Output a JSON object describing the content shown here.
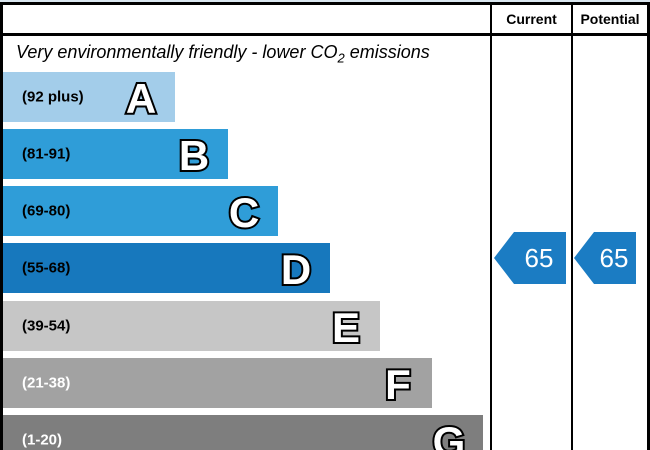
{
  "header": {
    "current": "Current",
    "potential": "Potential"
  },
  "title": {
    "prefix": "Very environmentally friendly - lower CO",
    "subscript": "2",
    "suffix": " emissions"
  },
  "bands": [
    {
      "letter": "A",
      "range": "(92 plus)",
      "color": "#a3cdea",
      "text_color": "#000000"
    },
    {
      "letter": "B",
      "range": "(81-91)",
      "color": "#2f9dd8",
      "text_color": "#000000"
    },
    {
      "letter": "C",
      "range": "(69-80)",
      "color": "#2f9dd8",
      "text_color": "#000000"
    },
    {
      "letter": "D",
      "range": "(55-68)",
      "color": "#1778bd",
      "text_color": "#000000"
    },
    {
      "letter": "E",
      "range": "(39-54)",
      "color": "#c6c6c6",
      "text_color": "#000000"
    },
    {
      "letter": "F",
      "range": "(21-38)",
      "color": "#a2a2a2",
      "text_color": "#ffffff"
    },
    {
      "letter": "G",
      "range": "(1-20)",
      "color": "#7e7e7e",
      "text_color": "#ffffff"
    }
  ],
  "ratings": {
    "current_value": "65",
    "potential_value": "65",
    "arrow_color": "#1b7cc3"
  },
  "chart_data": {
    "type": "bar",
    "title": "Very environmentally friendly - lower CO2 emissions",
    "categories": [
      "A",
      "B",
      "C",
      "D",
      "E",
      "F",
      "G"
    ],
    "band_ranges": [
      "92 plus",
      "81-91",
      "69-80",
      "55-68",
      "39-54",
      "21-38",
      "1-20"
    ],
    "band_colors": [
      "#a3cdea",
      "#2f9dd8",
      "#2f9dd8",
      "#1778bd",
      "#c6c6c6",
      "#a2a2a2",
      "#7e7e7e"
    ],
    "columns": [
      "Current",
      "Potential"
    ],
    "series": [
      {
        "name": "Current",
        "values": [
          65
        ]
      },
      {
        "name": "Potential",
        "values": [
          65
        ]
      }
    ],
    "current_rating_band": "D",
    "potential_rating_band": "D",
    "scale": [
      1,
      100
    ],
    "legend_position": "none",
    "grid": false
  }
}
